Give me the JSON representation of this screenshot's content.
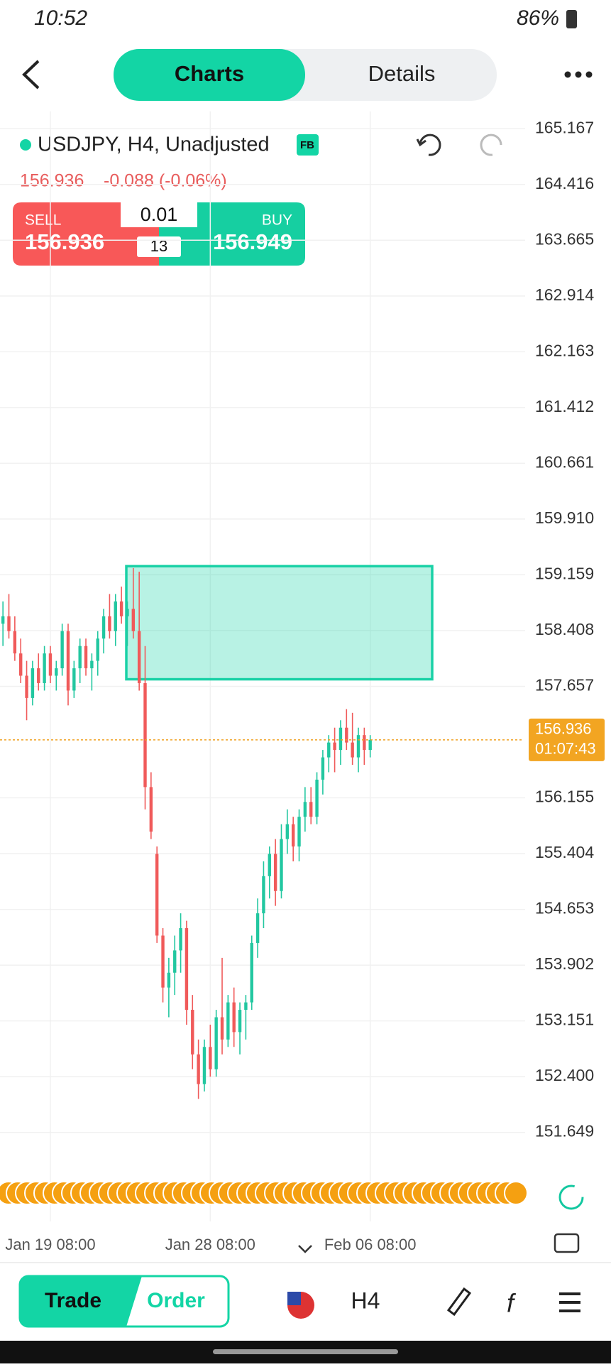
{
  "status_bar": {
    "time": "10:52",
    "battery": "86%"
  },
  "header": {
    "tabs": [
      "Charts",
      "Details"
    ]
  },
  "symbol": {
    "title": "USDJPY, H4, Unadjusted",
    "badge": "FB",
    "price": "156.936",
    "change": "-0.088 (-0.06%)"
  },
  "trade_box": {
    "sell_label": "SELL",
    "sell_price": "156.936",
    "lot": "0.01",
    "spread": "13",
    "buy_label": "BUY",
    "buy_price": "156.949"
  },
  "bottom_nav": {
    "trade": "Trade",
    "order": "Order",
    "timeframe": "H4"
  },
  "chart_data": {
    "type": "candlestick",
    "open": [
      158.5,
      158.6,
      158.4,
      158.1,
      157.8,
      157.5,
      157.9,
      157.7,
      158.1,
      157.8,
      157.9,
      158.4,
      157.6,
      157.9,
      158.2,
      157.9,
      158.0,
      158.3,
      158.6,
      158.4,
      158.8,
      158.6,
      158.7,
      158.4,
      157.7,
      156.3,
      155.4,
      154.3,
      153.6,
      153.8,
      154.1,
      154.4,
      153.3,
      152.7,
      152.3,
      152.8,
      152.5,
      153.2,
      152.9,
      153.4,
      153.0,
      153.3,
      153.4,
      154.2,
      154.6,
      155.1,
      155.4,
      154.9,
      155.6,
      155.8,
      155.5,
      155.9,
      156.1,
      155.9,
      156.4,
      156.7,
      156.9,
      156.8,
      157.1,
      156.9,
      156.7,
      157.0,
      156.8
    ],
    "high": [
      158.8,
      158.9,
      158.6,
      158.3,
      158.0,
      158.0,
      158.1,
      158.2,
      158.2,
      158.0,
      158.5,
      158.5,
      158.0,
      158.3,
      158.3,
      158.1,
      158.4,
      158.7,
      158.9,
      158.9,
      159.0,
      158.8,
      159.25,
      159.2,
      158.2,
      156.5,
      155.5,
      154.4,
      154.0,
      154.3,
      154.6,
      154.5,
      153.5,
      152.9,
      152.9,
      153.1,
      153.3,
      154.0,
      153.5,
      153.6,
      153.4,
      153.5,
      154.3,
      154.8,
      155.3,
      155.5,
      155.6,
      155.8,
      156.0,
      155.9,
      156.0,
      156.3,
      156.3,
      156.5,
      156.8,
      157.0,
      157.1,
      157.2,
      157.35,
      157.3,
      157.1,
      157.1,
      157.0
    ],
    "low": [
      158.2,
      158.3,
      158.0,
      157.7,
      157.2,
      157.4,
      157.6,
      157.6,
      157.7,
      157.6,
      157.8,
      157.4,
      157.5,
      157.7,
      157.8,
      157.6,
      157.8,
      158.1,
      158.3,
      158.2,
      158.5,
      158.2,
      158.3,
      157.6,
      156.0,
      155.6,
      154.2,
      153.4,
      153.2,
      153.5,
      153.8,
      153.1,
      152.5,
      152.1,
      152.2,
      152.4,
      152.4,
      152.7,
      152.8,
      152.8,
      152.7,
      152.9,
      153.3,
      154.0,
      154.4,
      154.8,
      154.7,
      154.8,
      155.4,
      155.3,
      155.3,
      155.7,
      155.8,
      155.8,
      156.2,
      156.5,
      156.5,
      156.6,
      156.8,
      156.6,
      156.5,
      156.6,
      156.7
    ],
    "close": [
      158.6,
      158.4,
      158.1,
      157.8,
      157.5,
      157.9,
      157.7,
      158.1,
      157.8,
      157.9,
      158.4,
      157.6,
      157.9,
      158.2,
      157.9,
      158.0,
      158.3,
      158.6,
      158.4,
      158.8,
      158.6,
      158.7,
      158.4,
      157.7,
      156.3,
      155.7,
      154.3,
      153.6,
      153.8,
      154.1,
      154.4,
      153.3,
      152.7,
      152.3,
      152.8,
      152.5,
      153.2,
      152.9,
      153.4,
      153.0,
      153.3,
      153.4,
      154.2,
      154.6,
      155.1,
      155.4,
      154.9,
      155.6,
      155.8,
      155.5,
      155.9,
      156.1,
      155.9,
      156.4,
      156.7,
      156.9,
      156.8,
      157.1,
      156.9,
      156.7,
      157.0,
      156.8,
      156.936
    ],
    "up_color": "#22c7a0",
    "down_color": "#f05a5a",
    "ylim": [
      151.2,
      165.4
    ],
    "yticks": [
      165.167,
      164.416,
      163.665,
      162.914,
      162.163,
      161.412,
      160.661,
      {
        "value": 159.91,
        "label": "159.910"
      },
      159.159,
      158.408,
      157.657,
      156.155,
      155.404,
      154.653,
      153.902,
      153.151,
      {
        "value": 152.4,
        "label": "152.400"
      },
      151.649
    ],
    "xticks": [
      {
        "value": 8,
        "label": "Jan 19 08:00"
      },
      {
        "value": 35,
        "label": "Jan 28 08:00"
      },
      {
        "value": 62,
        "label": "Feb 06 08:00"
      }
    ],
    "zone": {
      "high": 159.275,
      "low": 157.752
    },
    "last_price": {
      "value": 156.936,
      "countdown": "01:07:43"
    },
    "grid": true
  }
}
